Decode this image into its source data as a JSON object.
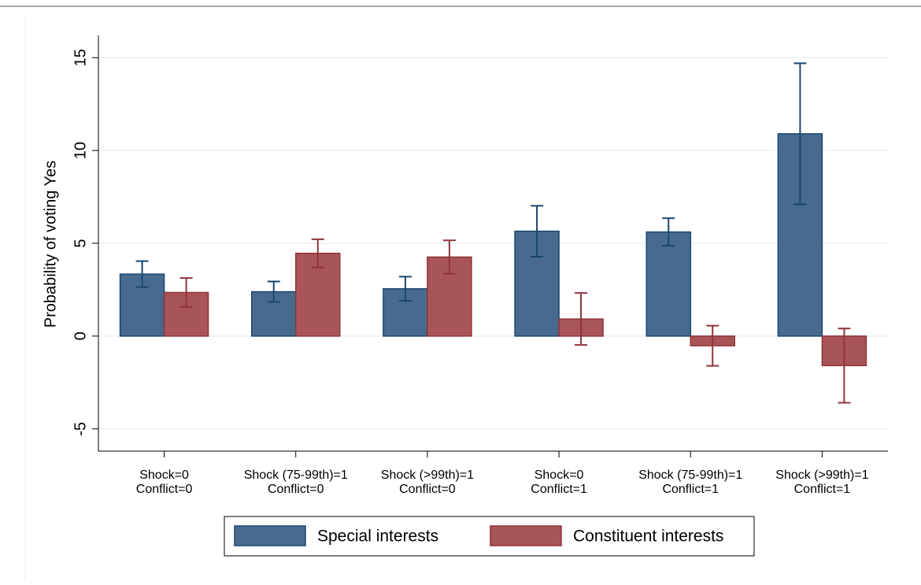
{
  "chart_data": {
    "type": "bar",
    "ylabel": "Probability of voting Yes",
    "categories": [
      [
        "Shock=0",
        "Conflict=0"
      ],
      [
        "Shock (75-99th)=1",
        "Conflict=0"
      ],
      [
        "Shock (>99th)=1",
        "Conflict=0"
      ],
      [
        "Shock=0",
        "Conflict=1"
      ],
      [
        "Shock (75-99th)=1",
        "Conflict=1"
      ],
      [
        "Shock (>99th)=1",
        "Conflict=1"
      ]
    ],
    "series": [
      {
        "name": "Special interests",
        "color": "#476a8e",
        "edge": "#1a476f",
        "values": [
          3.34,
          2.39,
          2.55,
          5.65,
          5.61,
          10.9
        ],
        "errors": [
          0.7,
          0.55,
          0.65,
          1.37,
          0.74,
          3.8
        ]
      },
      {
        "name": "Constituent interests",
        "color": "#a85558",
        "edge": "#90353b",
        "values": [
          2.35,
          4.46,
          4.26,
          0.92,
          -0.52,
          -1.59
        ],
        "errors": [
          0.78,
          0.76,
          0.9,
          1.4,
          1.08,
          2.0
        ]
      }
    ],
    "ylim": [
      -6.2,
      16.2
    ],
    "yticks": [
      -5,
      0,
      5,
      10,
      15
    ],
    "grid": true
  }
}
